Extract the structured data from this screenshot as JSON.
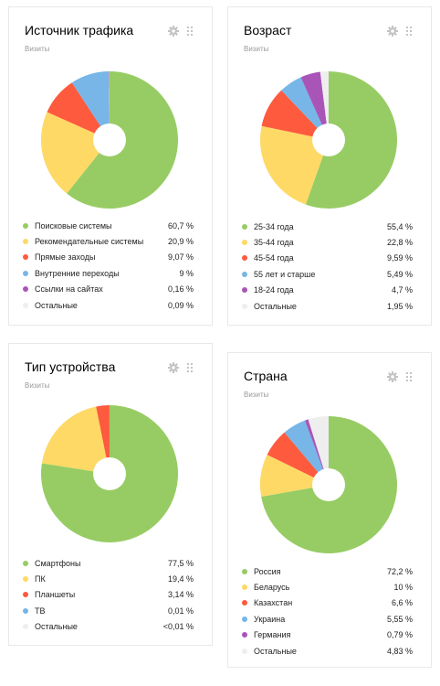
{
  "cards": [
    {
      "title": "Источник трафика",
      "subtitle": "Визиты",
      "chart_data": {
        "type": "pie",
        "labels": [
          "Поисковые системы",
          "Рекомендательные системы",
          "Прямые заходы",
          "Внутренние переходы",
          "Ссылки на сайтах",
          "Остальные"
        ],
        "values": [
          60.7,
          20.9,
          9.07,
          9,
          0.16,
          0.09
        ],
        "colors": [
          "#97cc64",
          "#fed966",
          "#fd5a3e",
          "#77b6e7",
          "#a955b8",
          "#eeeeee"
        ]
      },
      "legend": [
        {
          "label": "Поисковые системы",
          "value": "60,7 %"
        },
        {
          "label": "Рекомендательные системы",
          "value": "20,9 %"
        },
        {
          "label": "Прямые заходы",
          "value": "9,07 %"
        },
        {
          "label": "Внутренние переходы",
          "value": "9 %"
        },
        {
          "label": "Ссылки на сайтах",
          "value": "0,16 %"
        },
        {
          "label": "Остальные",
          "value": "0,09 %"
        }
      ]
    },
    {
      "title": "Возраст",
      "subtitle": "Визиты",
      "chart_data": {
        "type": "pie",
        "labels": [
          "25-34 года",
          "35-44 года",
          "45-54 года",
          "55 лет и старше",
          "18-24 года",
          "Остальные"
        ],
        "values": [
          55.4,
          22.8,
          9.59,
          5.49,
          4.7,
          1.95
        ],
        "colors": [
          "#97cc64",
          "#fed966",
          "#fd5a3e",
          "#77b6e7",
          "#a955b8",
          "#eeeeee"
        ]
      },
      "legend": [
        {
          "label": "25-34 года",
          "value": "55,4 %"
        },
        {
          "label": "35-44 года",
          "value": "22,8 %"
        },
        {
          "label": "45-54 года",
          "value": "9,59 %"
        },
        {
          "label": "55 лет и старше",
          "value": "5,49 %"
        },
        {
          "label": "18-24 года",
          "value": "4,7 %"
        },
        {
          "label": "Остальные",
          "value": "1,95 %"
        }
      ]
    },
    {
      "title": "Тип устройства",
      "subtitle": "Визиты",
      "chart_data": {
        "type": "pie",
        "labels": [
          "Смартфоны",
          "ПК",
          "Планшеты",
          "ТВ",
          "Остальные"
        ],
        "values": [
          77.5,
          19.4,
          3.14,
          0.01,
          0.005
        ],
        "colors": [
          "#97cc64",
          "#fed966",
          "#fd5a3e",
          "#77b6e7",
          "#eeeeee"
        ]
      },
      "legend": [
        {
          "label": "Смартфоны",
          "value": "77,5 %"
        },
        {
          "label": "ПК",
          "value": "19,4 %"
        },
        {
          "label": "Планшеты",
          "value": "3,14 %"
        },
        {
          "label": "ТВ",
          "value": "0,01 %"
        },
        {
          "label": "Остальные",
          "value": "<0,01 %"
        }
      ]
    },
    {
      "title": "Страна",
      "subtitle": "Визиты",
      "chart_data": {
        "type": "pie",
        "labels": [
          "Россия",
          "Беларусь",
          "Казахстан",
          "Украина",
          "Германия",
          "Остальные"
        ],
        "values": [
          72.2,
          10,
          6.6,
          5.55,
          0.79,
          4.83
        ],
        "colors": [
          "#97cc64",
          "#fed966",
          "#fd5a3e",
          "#77b6e7",
          "#a955b8",
          "#eeeeee"
        ]
      },
      "legend": [
        {
          "label": "Россия",
          "value": "72,2 %"
        },
        {
          "label": "Беларусь",
          "value": "10 %"
        },
        {
          "label": "Казахстан",
          "value": "6,6 %"
        },
        {
          "label": "Украина",
          "value": "5,55 %"
        },
        {
          "label": "Германия",
          "value": "0,79 %"
        },
        {
          "label": "Остальные",
          "value": "4,83 %"
        }
      ]
    }
  ],
  "icons": {
    "settings": "gear-icon",
    "drag": "drag-handle-icon"
  }
}
